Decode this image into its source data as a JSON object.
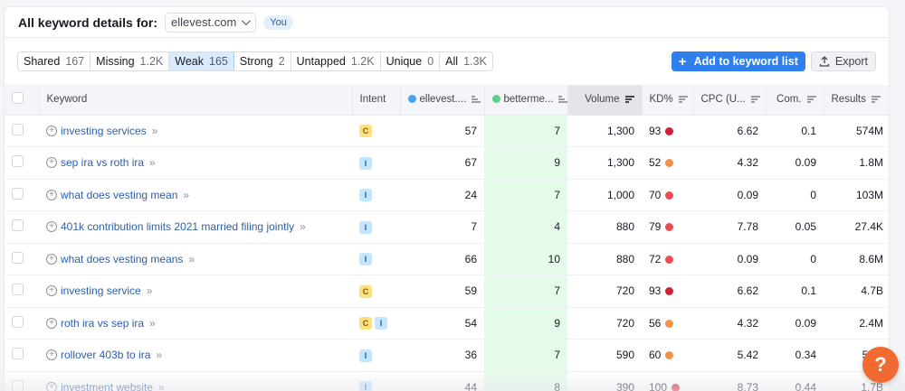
{
  "header": {
    "title": "All keyword details for:",
    "domain": "ellevest.com",
    "you_badge": "You"
  },
  "tabs": [
    {
      "label": "Shared",
      "count": "167",
      "active": false
    },
    {
      "label": "Missing",
      "count": "1.2K",
      "active": false
    },
    {
      "label": "Weak",
      "count": "165",
      "active": true
    },
    {
      "label": "Strong",
      "count": "2",
      "active": false
    },
    {
      "label": "Untapped",
      "count": "1.2K",
      "active": false
    },
    {
      "label": "Unique",
      "count": "0",
      "active": false
    },
    {
      "label": "All",
      "count": "1.3K",
      "active": false
    }
  ],
  "actions": {
    "add_label": "Add to keyword list",
    "export_label": "Export"
  },
  "colors": {
    "accent": "#2f80ed",
    "domain1_dot": "#4aa3f2",
    "domain2_dot": "#5fcf8f",
    "highlight_col": "#e5fbe9",
    "kd_red": "#d1202f",
    "kd_lightred": "#ee4c53",
    "kd_orange": "#f39146",
    "help": "#f06a31"
  },
  "table": {
    "columns": {
      "keyword": "Keyword",
      "intent": "Intent",
      "domain1": "ellevest....",
      "domain2": "betterme...",
      "volume": "Volume",
      "kd": "KD%",
      "cpc": "CPC (U...",
      "com": "Com.",
      "results": "Results"
    },
    "rows": [
      {
        "keyword": "investing services",
        "intent": [
          "C"
        ],
        "d1": "57",
        "d2": "7",
        "volume": "1,300",
        "kd": "93",
        "kd_color": "#d1202f",
        "cpc": "6.62",
        "com": "0.1",
        "results": "574M"
      },
      {
        "keyword": "sep ira vs roth ira",
        "intent": [
          "I"
        ],
        "d1": "67",
        "d2": "9",
        "volume": "1,300",
        "kd": "52",
        "kd_color": "#f39146",
        "cpc": "4.32",
        "com": "0.09",
        "results": "1.8M"
      },
      {
        "keyword": "what does vesting mean",
        "intent": [
          "I"
        ],
        "d1": "24",
        "d2": "7",
        "volume": "1,000",
        "kd": "70",
        "kd_color": "#ee4c53",
        "cpc": "0.09",
        "com": "0",
        "results": "103M"
      },
      {
        "keyword": "401k contribution limits 2021 married filing jointly",
        "intent": [
          "I"
        ],
        "d1": "7",
        "d2": "4",
        "volume": "880",
        "kd": "79",
        "kd_color": "#ee4c53",
        "cpc": "7.78",
        "com": "0.05",
        "results": "27.4K"
      },
      {
        "keyword": "what does vesting means",
        "intent": [
          "I"
        ],
        "d1": "66",
        "d2": "10",
        "volume": "880",
        "kd": "72",
        "kd_color": "#ee4c53",
        "cpc": "0.09",
        "com": "0",
        "results": "8.6M"
      },
      {
        "keyword": "investing service",
        "intent": [
          "C"
        ],
        "d1": "59",
        "d2": "7",
        "volume": "720",
        "kd": "93",
        "kd_color": "#d1202f",
        "cpc": "6.62",
        "com": "0.1",
        "results": "4.7B"
      },
      {
        "keyword": "roth ira vs sep ira",
        "intent": [
          "C",
          "I"
        ],
        "d1": "54",
        "d2": "9",
        "volume": "720",
        "kd": "56",
        "kd_color": "#f39146",
        "cpc": "4.32",
        "com": "0.09",
        "results": "2.4M"
      },
      {
        "keyword": "rollover 403b to ira",
        "intent": [
          "I"
        ],
        "d1": "36",
        "d2": "7",
        "volume": "590",
        "kd": "60",
        "kd_color": "#f39146",
        "cpc": "5.42",
        "com": "0.34",
        "results": "56.6"
      },
      {
        "keyword": "investment website",
        "intent": [
          "I"
        ],
        "d1": "44",
        "d2": "8",
        "volume": "390",
        "kd": "100",
        "kd_color": "#d1202f",
        "cpc": "8.73",
        "com": "0.44",
        "results": "1.7B"
      }
    ]
  },
  "help": {
    "label": "?"
  },
  "icons": {
    "add": "⊕",
    "double_chevron": "»"
  }
}
